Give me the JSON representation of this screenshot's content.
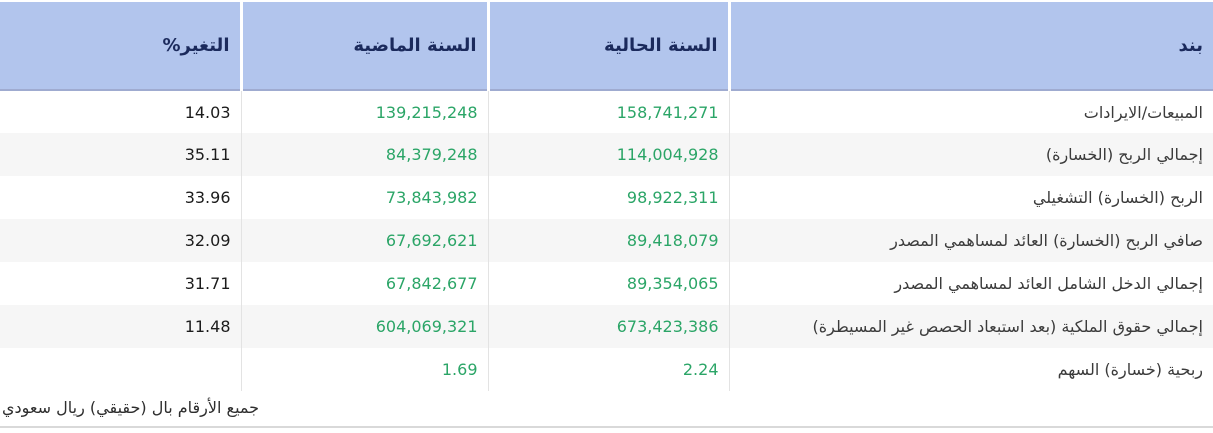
{
  "chart_data": {
    "type": "table",
    "title": "",
    "columns": [
      "بند",
      "السنة الحالية",
      "السنة الماضية",
      "التغير%"
    ],
    "rows": [
      [
        "المبيعات/الايرادات",
        158741271,
        139215248,
        14.03
      ],
      [
        "إجمالي الربح (الخسارة)",
        114004928,
        84379248,
        35.11
      ],
      [
        "الربح (الخسارة) التشغيلي",
        98922311,
        73843982,
        33.96
      ],
      [
        "صافي الربح (الخسارة) العائد لمساهمي المصدر",
        89418079,
        67692621,
        32.09
      ],
      [
        "إجمالي الدخل الشامل العائد لمساهمي المصدر",
        89354065,
        67842677,
        31.71
      ],
      [
        "إجمالي حقوق الملكية (بعد استبعاد الحصص غير المسيطرة)",
        673423386,
        604069321,
        11.48
      ],
      [
        "ربحية (خسارة) السهم",
        2.24,
        1.69,
        null
      ]
    ],
    "note": "جميع الأرقام بال (حقيقي) ريال سعودي",
    "value_color_meaning": "green = financial values, black = change percentage"
  },
  "table": {
    "headers": {
      "item": "بند",
      "current_year": "السنة الحالية",
      "previous_year": "السنة الماضية",
      "change_pct": "التغير%"
    },
    "rows": [
      {
        "item": "المبيعات/الايرادات",
        "current_year": "158,741,271",
        "previous_year": "139,215,248",
        "change_pct": "14.03"
      },
      {
        "item": "إجمالي الربح (الخسارة)",
        "current_year": "114,004,928",
        "previous_year": "84,379,248",
        "change_pct": "35.11"
      },
      {
        "item": "الربح (الخسارة) التشغيلي",
        "current_year": "98,922,311",
        "previous_year": "73,843,982",
        "change_pct": "33.96"
      },
      {
        "item": "صافي الربح (الخسارة) العائد لمساهمي المصدر",
        "current_year": "89,418,079",
        "previous_year": "67,692,621",
        "change_pct": "32.09"
      },
      {
        "item": "إجمالي الدخل الشامل العائد لمساهمي المصدر",
        "current_year": "89,354,065",
        "previous_year": "67,842,677",
        "change_pct": "31.71"
      },
      {
        "item": "إجمالي حقوق الملكية (بعد استبعاد الحصص غير المسيطرة)",
        "current_year": "673,423,386",
        "previous_year": "604,069,321",
        "change_pct": "11.48"
      },
      {
        "item": "ربحية (خسارة) السهم",
        "current_year": "2.24",
        "previous_year": "1.69",
        "change_pct": ""
      }
    ]
  },
  "footer": {
    "note": "جميع الأرقام بال (حقيقي) ريال سعودي"
  },
  "colors": {
    "header_bg": "#b2c5ed",
    "header_text": "#1b2a5c",
    "value_green": "#2ba567",
    "change_text": "#1c1c1c",
    "row_alt_bg": "#f6f6f6",
    "column_divider": "#e3e3e3",
    "header_divider": "#9fabd0",
    "bottom_border": "#d9d9d9"
  }
}
